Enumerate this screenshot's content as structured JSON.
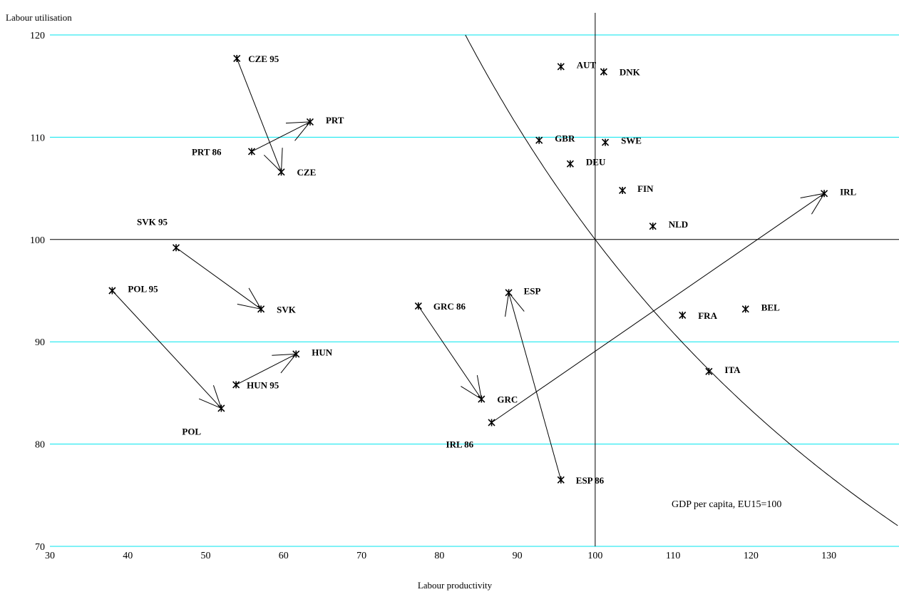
{
  "chart_data": {
    "type": "scatter",
    "title": "",
    "xlabel": "Labour productivity",
    "ylabel": "Labour utilisation",
    "xlim": [
      30,
      139
    ],
    "ylim": [
      70,
      120
    ],
    "xticks": [
      "30",
      "40",
      "50",
      "60",
      "70",
      "80",
      "90",
      "100",
      "110",
      "120",
      "130"
    ],
    "yticks": [
      "70",
      "80",
      "90",
      "100",
      "110",
      "120"
    ],
    "grid": "horizontal",
    "reference_lines": {
      "x": 100,
      "y": 100
    },
    "iso_curve": {
      "product": 10000,
      "annotation": "GDP per capita, EU15=100"
    },
    "points": [
      {
        "label": "CZE 95",
        "x": 54.0,
        "y": 117.7
      },
      {
        "label": "CZE",
        "x": 59.7,
        "y": 106.6
      },
      {
        "label": "PRT 86",
        "x": 55.9,
        "y": 108.6
      },
      {
        "label": "PRT",
        "x": 63.4,
        "y": 111.5
      },
      {
        "label": "SVK 95",
        "x": 46.2,
        "y": 99.2
      },
      {
        "label": "SVK",
        "x": 57.1,
        "y": 93.2
      },
      {
        "label": "POL 95",
        "x": 38.0,
        "y": 95.0
      },
      {
        "label": "POL",
        "x": 52.0,
        "y": 83.5
      },
      {
        "label": "HUN 95",
        "x": 53.9,
        "y": 85.8
      },
      {
        "label": "HUN",
        "x": 61.6,
        "y": 88.8
      },
      {
        "label": "GRC 86",
        "x": 77.3,
        "y": 93.5
      },
      {
        "label": "GRC",
        "x": 85.4,
        "y": 84.4
      },
      {
        "label": "ESP 86",
        "x": 95.6,
        "y": 76.5
      },
      {
        "label": "ESP",
        "x": 88.9,
        "y": 94.8
      },
      {
        "label": "IRL 86",
        "x": 86.7,
        "y": 82.1
      },
      {
        "label": "IRL",
        "x": 129.4,
        "y": 104.5
      },
      {
        "label": "AUT",
        "x": 95.6,
        "y": 116.9
      },
      {
        "label": "DNK",
        "x": 101.1,
        "y": 116.4
      },
      {
        "label": "GBR",
        "x": 92.8,
        "y": 109.7
      },
      {
        "label": "SWE",
        "x": 101.3,
        "y": 109.5
      },
      {
        "label": "DEU",
        "x": 96.8,
        "y": 107.4
      },
      {
        "label": "FIN",
        "x": 103.5,
        "y": 104.8
      },
      {
        "label": "NLD",
        "x": 107.4,
        "y": 101.3
      },
      {
        "label": "FRA",
        "x": 111.2,
        "y": 92.6
      },
      {
        "label": "BEL",
        "x": 119.3,
        "y": 93.2
      },
      {
        "label": "ITA",
        "x": 114.6,
        "y": 87.1
      }
    ],
    "arrows": [
      {
        "from": "CZE 95",
        "to": "CZE"
      },
      {
        "from": "PRT 86",
        "to": "PRT"
      },
      {
        "from": "SVK 95",
        "to": "SVK"
      },
      {
        "from": "POL 95",
        "to": "POL"
      },
      {
        "from": "HUN 95",
        "to": "HUN"
      },
      {
        "from": "GRC 86",
        "to": "GRC"
      },
      {
        "from": "ESP 86",
        "to": "ESP"
      },
      {
        "from": "IRL 86",
        "to": "IRL"
      }
    ]
  }
}
